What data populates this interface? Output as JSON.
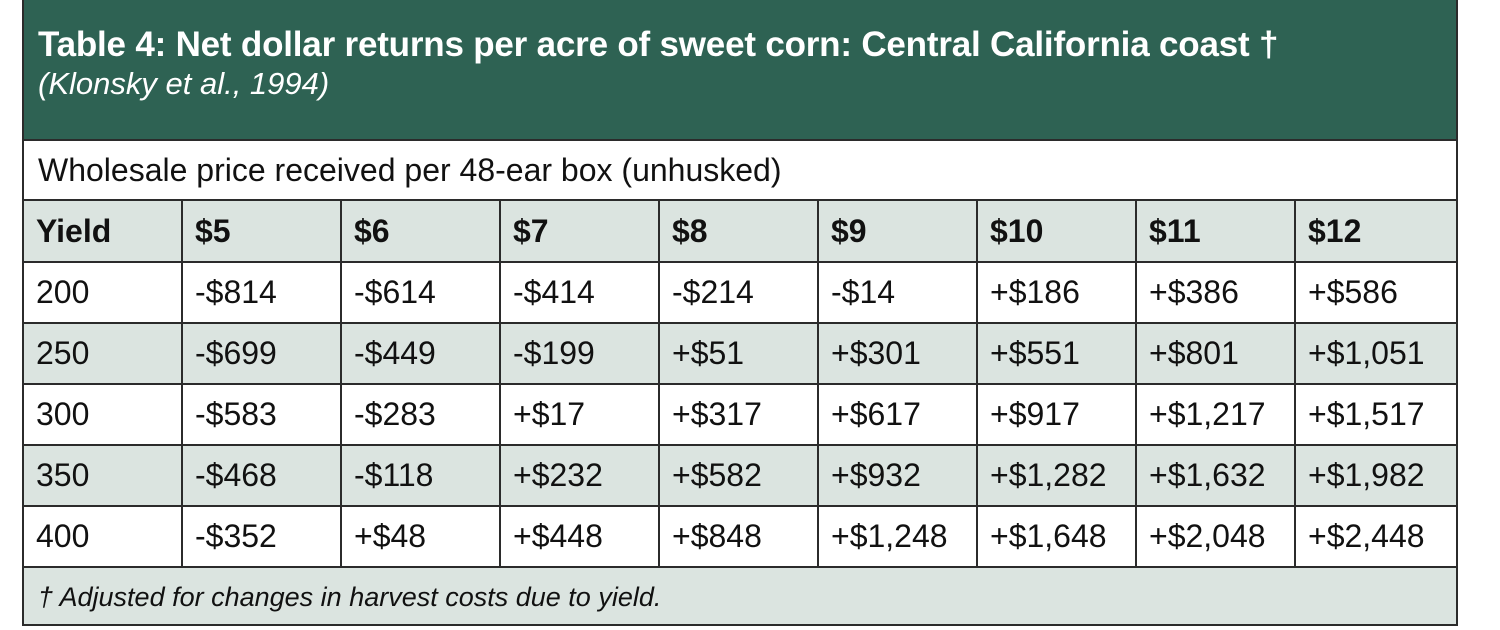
{
  "table": {
    "title": "Table 4: Net dollar returns per acre of sweet corn: Central California coast †",
    "subtitle": "(Klonsky et al., 1994)",
    "caption": "Wholesale price received per 48-ear box (unhusked)",
    "columns": [
      "Yield",
      "$5",
      "$6",
      "$7",
      "$8",
      "$9",
      "$10",
      "$11",
      "$12"
    ],
    "rows": [
      [
        "200",
        "-$814",
        "-$614",
        "-$414",
        "-$214",
        "-$14",
        "+$186",
        "+$386",
        "+$586"
      ],
      [
        "250",
        "-$699",
        "-$449",
        "-$199",
        "+$51",
        "+$301",
        "+$551",
        "+$801",
        "+$1,051"
      ],
      [
        "300",
        "-$583",
        "-$283",
        "+$17",
        "+$317",
        "+$617",
        "+$917",
        "+$1,217",
        "+$1,517"
      ],
      [
        "350",
        "-$468",
        "-$118",
        "+$232",
        "+$582",
        "+$932",
        "+$1,282",
        "+$1,632",
        "+$1,982"
      ],
      [
        "400",
        "-$352",
        "+$48",
        "+$448",
        "+$848",
        "+$1,248",
        "+$1,648",
        "+$2,048",
        "+$2,448"
      ]
    ],
    "footnote": "† Adjusted for changes in harvest costs due to yield."
  },
  "colors": {
    "header_bg": "#2e6253",
    "shaded_bg": "#dbe4e0",
    "border": "#2b2b2b"
  }
}
